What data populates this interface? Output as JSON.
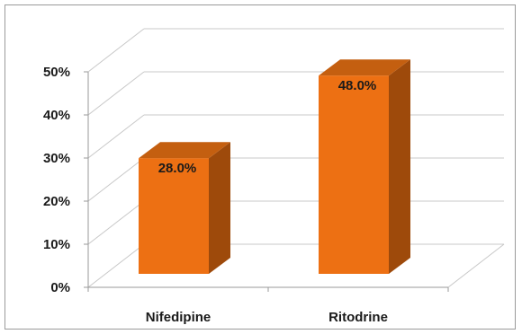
{
  "chart_data": {
    "type": "bar",
    "categories": [
      "Nifedipine",
      "Ritodrine"
    ],
    "values": [
      28.0,
      48.0
    ],
    "data_labels": [
      "28.0%",
      "48.0%"
    ],
    "y_ticks": [
      "0%",
      "10%",
      "20%",
      "30%",
      "40%",
      "50%"
    ],
    "ylim": [
      0,
      50
    ],
    "title": "",
    "xlabel": "",
    "ylabel": "",
    "grid": true,
    "legend": "none",
    "style": "3d-column",
    "colors": {
      "front": "#ED7013",
      "side": "#9E4A0B",
      "top": "#C45F10",
      "grid": "#c8c8c8"
    }
  }
}
